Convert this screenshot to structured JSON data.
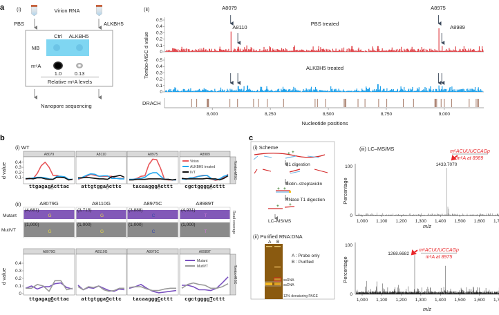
{
  "panel_a": {
    "label": "a",
    "i": {
      "sub": "(i)",
      "virion_rna": "Virion RNA",
      "pbs": "PBS",
      "alkbh5": "ALKBH5",
      "col_ctrl": "Ctrl",
      "col_alkbh5": "ALKBH5",
      "row_mb": "MB",
      "row_m6a": "m⁶A",
      "values": [
        "1.0",
        "0.13"
      ],
      "rel_label": "Relative m⁶A levels",
      "nanopore": "Nanopore sequencing"
    },
    "ii": {
      "sub": "(ii)",
      "ylabel": "Tombo-MSC d value",
      "yticks": [
        "0",
        "0.1",
        "0.2",
        "0.3",
        "0.4",
        "0.5"
      ],
      "pbs_title": "PBS treated",
      "alk_title": "ALKBH5 treated",
      "drach_label": "DRACH",
      "xticks": [
        {
          "v": 8000,
          "label": "8,000"
        },
        {
          "v": 8250,
          "label": "8,250"
        },
        {
          "v": 8500,
          "label": "8,500"
        },
        {
          "v": 8750,
          "label": "8,750"
        },
        {
          "v": 9000,
          "label": "9,000"
        }
      ],
      "xlabel": "Nucleotide positions",
      "xrange": [
        7794,
        9170
      ],
      "annotations": [
        {
          "label": "A8079",
          "pos": 8079
        },
        {
          "label": "A8110",
          "pos": 8110
        },
        {
          "label": "A8975",
          "pos": 8975
        },
        {
          "label": "A8989",
          "pos": 8989
        }
      ],
      "pbs_peaks": [
        [
          8079,
          0.32
        ],
        [
          8110,
          0.08
        ],
        [
          8975,
          0.37
        ],
        [
          8989,
          0.09
        ],
        [
          8600,
          0.09
        ],
        [
          8712,
          0.09
        ],
        [
          8147,
          0.1
        ],
        [
          8353,
          0.1
        ]
      ],
      "alk_peaks": [
        [
          8079,
          0.03
        ],
        [
          8110,
          0.09
        ],
        [
          8712,
          0.12
        ],
        [
          8975,
          0.1
        ],
        [
          8989,
          0.09
        ],
        [
          8150,
          0.1
        ],
        [
          8205,
          0.08
        ]
      ],
      "drach_sites": [
        7911,
        7933,
        7978,
        7981,
        7984,
        8076,
        8109,
        8178,
        8199,
        8237,
        8307,
        8443,
        8453,
        8488,
        8568,
        8572,
        8576,
        8628,
        8658,
        8717,
        8752,
        8823,
        8867,
        8959,
        8963,
        8967,
        8986,
        9000,
        9031,
        9107,
        9137,
        9143,
        9147
      ],
      "colors": {
        "pbs": "#e0474c",
        "alk": "#1ea0ea",
        "drach": "#9a6a55",
        "arrow": "#3d4a5c"
      }
    }
  },
  "panel_b": {
    "label": "b",
    "i": {
      "sub": "(i) WT",
      "ylabel": "d value",
      "strip": "Tombo-MSC",
      "yticks": [
        "0.1",
        "0.2",
        "0.3",
        "0.4"
      ],
      "legend": [
        {
          "name": "Virion",
          "color": "#e8585b"
        },
        {
          "name": "ALKBH5 treated",
          "color": "#22a8f0"
        },
        {
          "name": "IVT",
          "color": "#111111"
        }
      ],
      "facets": [
        {
          "title": "A8079",
          "seq": "ttgagagActtac",
          "series": [
            [
              0.07,
              0.07,
              0.08,
              0.18,
              0.33,
              0.4,
              0.3,
              0.14,
              0.14,
              0.11,
              0.1,
              0.05,
              0.06
            ],
            [
              0.08,
              0.07,
              0.09,
              0.1,
              0.1,
              0.09,
              0.07,
              0.06,
              0.12,
              0.12,
              0.11,
              0.06,
              0.06
            ],
            [
              0.07,
              0.08,
              0.07,
              0.09,
              0.09,
              0.07,
              0.06,
              0.06,
              0.1,
              0.1,
              0.09,
              0.05,
              0.06
            ]
          ]
        },
        {
          "title": "A8110",
          "seq": "attgtggaActtc",
          "series": [
            [
              0.06,
              0.09,
              0.12,
              0.16,
              0.14,
              0.12,
              0.12,
              0.12,
              0.12,
              0.08,
              0.08,
              0.07
            ],
            [
              0.07,
              0.1,
              0.14,
              0.17,
              0.16,
              0.12,
              0.13,
              0.13,
              0.08,
              0.08,
              0.07,
              0.07
            ],
            [
              0.09,
              0.09,
              0.1,
              0.09,
              0.08,
              0.07,
              0.07,
              0.06,
              0.11,
              0.12,
              0.14,
              0.1
            ]
          ]
        },
        {
          "title": "A8975",
          "seq": "tacaagggActtt",
          "series": [
            [
              0.05,
              0.06,
              0.08,
              0.12,
              0.13,
              0.35,
              0.46,
              0.45,
              0.28,
              0.06,
              0.05,
              0.05,
              0.05
            ],
            [
              0.06,
              0.06,
              0.07,
              0.08,
              0.1,
              0.16,
              0.19,
              0.19,
              0.12,
              0.06,
              0.06,
              0.05,
              0.05
            ],
            [
              0.05,
              0.05,
              0.06,
              0.06,
              0.06,
              0.07,
              0.07,
              0.07,
              0.07,
              0.06,
              0.06,
              0.05,
              0.06
            ]
          ]
        },
        {
          "title": "A8989",
          "seq": "cgctggggActtt",
          "series": [
            [
              0.07,
              0.07,
              0.08,
              0.1,
              0.12,
              0.14,
              0.14,
              0.07,
              0.04,
              0.06,
              0.1,
              0.16
            ],
            [
              0.07,
              0.06,
              0.09,
              0.09,
              0.12,
              0.13,
              0.14,
              0.08,
              0.05,
              0.07,
              0.12,
              0.15
            ],
            [
              0.08,
              0.07,
              0.07,
              0.07,
              0.07,
              0.07,
              0.08,
              0.07,
              0.07,
              0.05,
              0.08,
              0.13
            ]
          ]
        }
      ]
    },
    "ii": {
      "sub": "(ii)",
      "row_mutant": "Mutant",
      "row_mutivt": "MutIVT",
      "strip_cov": "Read coverage",
      "ylabel": "d value",
      "strip": "Tombo-MSC",
      "yticks": [
        "0",
        "0.1",
        "0.2",
        "0.3",
        "0.4"
      ],
      "legend": [
        {
          "name": "Mutant",
          "color": "#7b52c0"
        },
        {
          "name": "MutIVT",
          "color": "#9a9a9a"
        }
      ],
      "facets": [
        {
          "title": "A8079G",
          "mut_count": "(4,681)",
          "ivt_count": "(1,000)",
          "base": "G",
          "base_color": "#e6d84a",
          "seq": "ttgagagGcttac",
          "series": [
            [
              0.07,
              0.1,
              0.06,
              0.09,
              0.09,
              0.13,
              0.14,
              0.08,
              0.06
            ],
            [
              0.07,
              0.07,
              0.12,
              0.1,
              0.03,
              0.17,
              0.17,
              0.05,
              0.07
            ]
          ]
        },
        {
          "title": "A8110G",
          "mut_count": "(3,715)",
          "ivt_count": "(1,000)",
          "base": "G",
          "base_color": "#e6d84a",
          "seq": "attgtggaGcttc",
          "series": [
            [
              0.11,
              0.05,
              0.08,
              0.07,
              0.1,
              0.07,
              0.04,
              0.03,
              0.06,
              0.05
            ],
            [
              0.09,
              0.05,
              0.09,
              0.08,
              0.1,
              0.05,
              0.03,
              0.04,
              0.07,
              0.07
            ]
          ]
        },
        {
          "title": "A8975C",
          "mut_count": "(3,888)",
          "ivt_count": "(1,000)",
          "base": "C",
          "base_color": "#3a4aa8",
          "seq": "tacaagggCcttt",
          "series": [
            [
              0.07,
              0.09,
              0.12,
              0.07,
              0.03,
              0.01,
              0.02,
              0.03,
              0.04
            ],
            [
              0.08,
              0.09,
              0.09,
              0.06,
              0.04,
              0.04,
              0.06,
              0.07,
              0.07
            ]
          ]
        },
        {
          "title": "A8989T",
          "mut_count": "(4,931)",
          "ivt_count": "(1,000)",
          "base": "T",
          "base_color": "#d07ad8",
          "seq": "cgctggggTcttt",
          "series": [
            [
              0.11,
              0.11,
              0.09,
              0.05,
              0.05,
              0.04,
              0.07,
              0.14,
              0.22
            ],
            [
              0.07,
              0.12,
              0.14,
              0.12,
              0.11,
              0.07,
              0.07,
              0.09,
              0.13
            ]
          ]
        }
      ]
    }
  },
  "panel_c": {
    "label": "c",
    "i": {
      "sub": "(i) Scheme",
      "steps": [
        "S1 digestion",
        "Biotin–streptavidin",
        "RNase T1 digestion",
        "LC–MS/MS"
      ]
    },
    "ii": {
      "sub": "(ii) Purified RNA:DNA",
      "lanes": [
        "A",
        "B"
      ],
      "key_a": "A : Probe only",
      "key_b": "B : Purified",
      "ssrna": "ssRNA",
      "ssdna": "ssDNA",
      "caption": "12% denaturing PAGE"
    },
    "iii": {
      "sub": "(iii) LC–MS/MS",
      "ylabel": "Percentage",
      "xlabel": "m/z",
      "xticks": [
        "1,000",
        "1,100",
        "1,200",
        "1,300",
        "1,400",
        "1,500",
        "1,600",
        "1,700"
      ],
      "ytop": "100",
      "yzero": "0",
      "spectra": [
        {
          "peak_label": "1433.7070",
          "seq": "m⁶ACUUUCCAGp",
          "site": "m⁶A at 8989",
          "noise": 3,
          "peaks": [
            [
              1433.7,
              97
            ],
            [
              1438,
              18
            ],
            [
              1442,
              14
            ],
            [
              1076,
              6
            ],
            [
              1105,
              5
            ],
            [
              1024,
              4
            ],
            [
              1185,
              3
            ],
            [
              1270,
              3
            ]
          ]
        },
        {
          "peak_label": "1268.6682",
          "seq": "m⁶ACUUUCCAGp",
          "site": "m⁶A at 8975",
          "noise": 10,
          "peaks": [
            [
              1268.7,
              80
            ],
            [
              1425,
              58
            ],
            [
              1022,
              27
            ],
            [
              1075,
              26
            ],
            [
              1105,
              22
            ],
            [
              1185,
              19
            ],
            [
              1235,
              16
            ],
            [
              1348,
              14
            ],
            [
              1508,
              10
            ],
            [
              1585,
              8
            ]
          ]
        }
      ]
    }
  }
}
